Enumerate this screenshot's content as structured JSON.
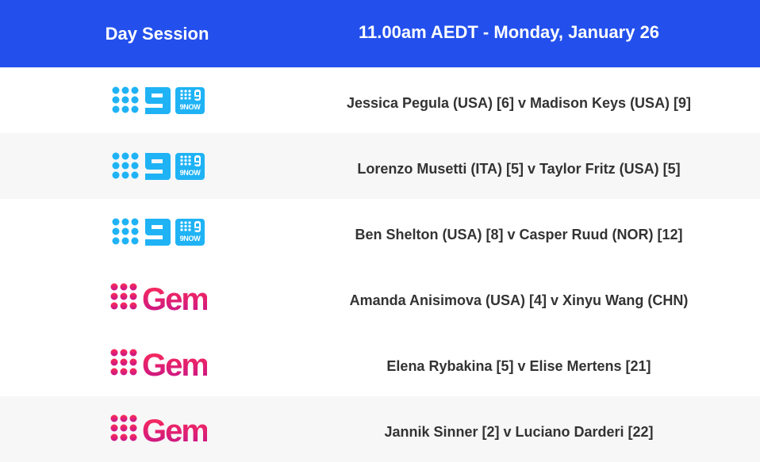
{
  "header": {
    "session": "Day Session",
    "time": "11.00am AEDT - Monday, January 26"
  },
  "colors": {
    "header": "#2350ec",
    "nine": "#1fb3f5",
    "gem_top": "#ff2d55",
    "gem_bottom": "#c4148c"
  },
  "rows": [
    {
      "channel": "9Now",
      "logo_icon": "nine-now-logo",
      "match": "Jessica Pegula (USA) [6] v Madison Keys (USA) [9]"
    },
    {
      "channel": "9Now",
      "logo_icon": "nine-now-logo",
      "match": "Lorenzo Musetti (ITA) [5] v Taylor Fritz (USA) [5]"
    },
    {
      "channel": "9Now",
      "logo_icon": "nine-now-logo",
      "match": "Ben Shelton (USA) [8] v Casper Ruud (NOR) [12]"
    },
    {
      "channel": "Gem",
      "logo_icon": "gem-logo",
      "match": "Amanda Anisimova (USA) [4] v Xinyu Wang (CHN)"
    },
    {
      "channel": "Gem",
      "logo_icon": "gem-logo",
      "match": "Elena Rybakina [5] v Elise Mertens [21]"
    },
    {
      "channel": "Gem",
      "logo_icon": "gem-logo",
      "match": "Jannik Sinner  [2] v Luciano Darderi [22]"
    }
  ]
}
